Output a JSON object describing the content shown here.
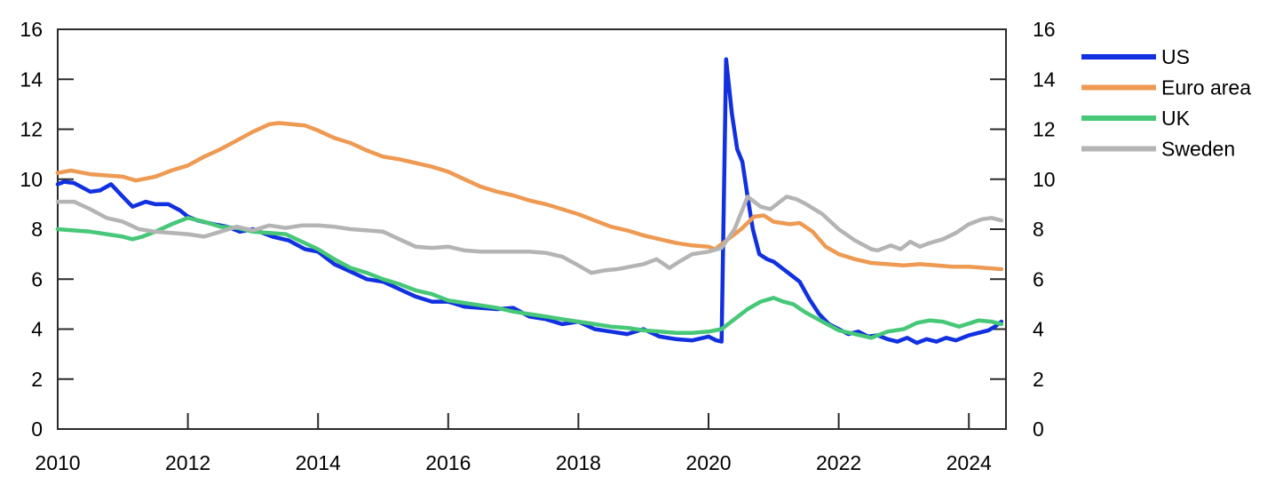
{
  "chart_data": {
    "type": "line",
    "title": "",
    "xlabel": "",
    "ylabel": "",
    "grid": false,
    "x_axis": {
      "min": 2010,
      "max": 2024.57,
      "ticks": [
        2010,
        2012,
        2014,
        2016,
        2018,
        2020,
        2022,
        2024
      ],
      "tick_labels": [
        "2010",
        "2012",
        "2014",
        "2016",
        "2018",
        "2020",
        "2022",
        "2024"
      ]
    },
    "y_axis": {
      "min": 0,
      "max": 16,
      "ticks": [
        0,
        2,
        4,
        6,
        8,
        10,
        12,
        14,
        16
      ],
      "tick_labels": [
        "0",
        "2",
        "4",
        "6",
        "8",
        "10",
        "12",
        "14",
        "16"
      ],
      "sides": [
        "left",
        "right"
      ]
    },
    "legend": {
      "position": "top-right-outside",
      "entries": [
        "US",
        "Euro area",
        "UK",
        "Sweden"
      ]
    },
    "series": [
      {
        "name": "US",
        "color": "#1130e0",
        "points": [
          [
            2010.0,
            9.8
          ],
          [
            2010.1,
            9.9
          ],
          [
            2010.25,
            9.85
          ],
          [
            2010.5,
            9.5
          ],
          [
            2010.65,
            9.55
          ],
          [
            2010.82,
            9.8
          ],
          [
            2011.0,
            9.3
          ],
          [
            2011.15,
            8.9
          ],
          [
            2011.35,
            9.1
          ],
          [
            2011.5,
            9.0
          ],
          [
            2011.7,
            9.0
          ],
          [
            2011.88,
            8.75
          ],
          [
            2012.0,
            8.5
          ],
          [
            2012.15,
            8.35
          ],
          [
            2012.4,
            8.2
          ],
          [
            2012.6,
            8.1
          ],
          [
            2012.8,
            7.9
          ],
          [
            2013.0,
            8.0
          ],
          [
            2013.3,
            7.7
          ],
          [
            2013.55,
            7.55
          ],
          [
            2013.8,
            7.2
          ],
          [
            2014.0,
            7.1
          ],
          [
            2014.25,
            6.6
          ],
          [
            2014.5,
            6.3
          ],
          [
            2014.75,
            6.0
          ],
          [
            2015.0,
            5.9
          ],
          [
            2015.25,
            5.6
          ],
          [
            2015.5,
            5.3
          ],
          [
            2015.75,
            5.1
          ],
          [
            2016.0,
            5.1
          ],
          [
            2016.25,
            4.9
          ],
          [
            2016.5,
            4.85
          ],
          [
            2016.75,
            4.8
          ],
          [
            2017.0,
            4.85
          ],
          [
            2017.25,
            4.5
          ],
          [
            2017.5,
            4.4
          ],
          [
            2017.75,
            4.2
          ],
          [
            2018.0,
            4.3
          ],
          [
            2018.25,
            4.0
          ],
          [
            2018.5,
            3.9
          ],
          [
            2018.75,
            3.8
          ],
          [
            2019.0,
            4.0
          ],
          [
            2019.25,
            3.7
          ],
          [
            2019.5,
            3.6
          ],
          [
            2019.75,
            3.55
          ],
          [
            2020.0,
            3.7
          ],
          [
            2020.12,
            3.55
          ],
          [
            2020.2,
            3.5
          ],
          [
            2020.27,
            14.8
          ],
          [
            2020.36,
            12.6
          ],
          [
            2020.44,
            11.2
          ],
          [
            2020.52,
            10.7
          ],
          [
            2020.6,
            9.3
          ],
          [
            2020.68,
            8.0
          ],
          [
            2020.78,
            7.0
          ],
          [
            2020.9,
            6.8
          ],
          [
            2021.0,
            6.7
          ],
          [
            2021.15,
            6.4
          ],
          [
            2021.3,
            6.1
          ],
          [
            2021.4,
            5.9
          ],
          [
            2021.55,
            5.2
          ],
          [
            2021.7,
            4.6
          ],
          [
            2021.85,
            4.2
          ],
          [
            2022.0,
            4.0
          ],
          [
            2022.15,
            3.8
          ],
          [
            2022.3,
            3.9
          ],
          [
            2022.45,
            3.7
          ],
          [
            2022.6,
            3.75
          ],
          [
            2022.75,
            3.6
          ],
          [
            2022.9,
            3.5
          ],
          [
            2023.05,
            3.65
          ],
          [
            2023.2,
            3.45
          ],
          [
            2023.35,
            3.6
          ],
          [
            2023.5,
            3.5
          ],
          [
            2023.65,
            3.65
          ],
          [
            2023.8,
            3.55
          ],
          [
            2024.0,
            3.75
          ],
          [
            2024.15,
            3.85
          ],
          [
            2024.3,
            3.95
          ],
          [
            2024.4,
            4.1
          ],
          [
            2024.5,
            4.3
          ]
        ]
      },
      {
        "name": "Euro area",
        "color": "#ee9a52",
        "points": [
          [
            2010.0,
            10.25
          ],
          [
            2010.2,
            10.35
          ],
          [
            2010.5,
            10.2
          ],
          [
            2010.75,
            10.15
          ],
          [
            2011.0,
            10.1
          ],
          [
            2011.2,
            9.95
          ],
          [
            2011.5,
            10.1
          ],
          [
            2011.75,
            10.35
          ],
          [
            2012.0,
            10.55
          ],
          [
            2012.25,
            10.9
          ],
          [
            2012.5,
            11.2
          ],
          [
            2012.75,
            11.55
          ],
          [
            2013.0,
            11.9
          ],
          [
            2013.25,
            12.2
          ],
          [
            2013.4,
            12.25
          ],
          [
            2013.6,
            12.2
          ],
          [
            2013.8,
            12.15
          ],
          [
            2014.0,
            11.95
          ],
          [
            2014.25,
            11.65
          ],
          [
            2014.5,
            11.45
          ],
          [
            2014.75,
            11.15
          ],
          [
            2015.0,
            10.9
          ],
          [
            2015.25,
            10.8
          ],
          [
            2015.5,
            10.65
          ],
          [
            2015.75,
            10.5
          ],
          [
            2016.0,
            10.3
          ],
          [
            2016.25,
            10.0
          ],
          [
            2016.5,
            9.7
          ],
          [
            2016.75,
            9.5
          ],
          [
            2017.0,
            9.35
          ],
          [
            2017.25,
            9.15
          ],
          [
            2017.5,
            9.0
          ],
          [
            2017.75,
            8.8
          ],
          [
            2018.0,
            8.6
          ],
          [
            2018.25,
            8.35
          ],
          [
            2018.5,
            8.1
          ],
          [
            2018.75,
            7.95
          ],
          [
            2019.0,
            7.75
          ],
          [
            2019.25,
            7.6
          ],
          [
            2019.5,
            7.45
          ],
          [
            2019.75,
            7.35
          ],
          [
            2020.0,
            7.3
          ],
          [
            2020.1,
            7.2
          ],
          [
            2020.3,
            7.6
          ],
          [
            2020.5,
            8.0
          ],
          [
            2020.7,
            8.5
          ],
          [
            2020.85,
            8.55
          ],
          [
            2021.0,
            8.3
          ],
          [
            2021.25,
            8.2
          ],
          [
            2021.4,
            8.25
          ],
          [
            2021.6,
            7.9
          ],
          [
            2021.8,
            7.3
          ],
          [
            2022.0,
            7.0
          ],
          [
            2022.25,
            6.8
          ],
          [
            2022.5,
            6.65
          ],
          [
            2022.75,
            6.6
          ],
          [
            2023.0,
            6.55
          ],
          [
            2023.25,
            6.6
          ],
          [
            2023.5,
            6.55
          ],
          [
            2023.75,
            6.5
          ],
          [
            2024.0,
            6.5
          ],
          [
            2024.25,
            6.45
          ],
          [
            2024.5,
            6.4
          ]
        ]
      },
      {
        "name": "UK",
        "color": "#46c878",
        "points": [
          [
            2010.0,
            8.0
          ],
          [
            2010.25,
            7.95
          ],
          [
            2010.5,
            7.9
          ],
          [
            2010.75,
            7.8
          ],
          [
            2011.0,
            7.7
          ],
          [
            2011.15,
            7.6
          ],
          [
            2011.3,
            7.7
          ],
          [
            2011.5,
            7.9
          ],
          [
            2011.75,
            8.2
          ],
          [
            2012.0,
            8.45
          ],
          [
            2012.25,
            8.3
          ],
          [
            2012.5,
            8.1
          ],
          [
            2012.75,
            8.05
          ],
          [
            2013.0,
            7.9
          ],
          [
            2013.25,
            7.85
          ],
          [
            2013.5,
            7.8
          ],
          [
            2013.75,
            7.5
          ],
          [
            2014.0,
            7.2
          ],
          [
            2014.25,
            6.8
          ],
          [
            2014.5,
            6.45
          ],
          [
            2014.75,
            6.25
          ],
          [
            2015.0,
            6.0
          ],
          [
            2015.25,
            5.8
          ],
          [
            2015.5,
            5.55
          ],
          [
            2015.75,
            5.4
          ],
          [
            2016.0,
            5.15
          ],
          [
            2016.25,
            5.05
          ],
          [
            2016.5,
            4.95
          ],
          [
            2016.75,
            4.85
          ],
          [
            2017.0,
            4.7
          ],
          [
            2017.25,
            4.6
          ],
          [
            2017.5,
            4.5
          ],
          [
            2017.75,
            4.4
          ],
          [
            2018.0,
            4.3
          ],
          [
            2018.25,
            4.2
          ],
          [
            2018.5,
            4.1
          ],
          [
            2018.75,
            4.05
          ],
          [
            2019.0,
            3.95
          ],
          [
            2019.25,
            3.9
          ],
          [
            2019.5,
            3.85
          ],
          [
            2019.75,
            3.85
          ],
          [
            2020.0,
            3.9
          ],
          [
            2020.2,
            4.0
          ],
          [
            2020.4,
            4.4
          ],
          [
            2020.6,
            4.8
          ],
          [
            2020.8,
            5.1
          ],
          [
            2021.0,
            5.25
          ],
          [
            2021.15,
            5.1
          ],
          [
            2021.3,
            5.0
          ],
          [
            2021.5,
            4.65
          ],
          [
            2021.75,
            4.3
          ],
          [
            2022.0,
            3.95
          ],
          [
            2022.25,
            3.8
          ],
          [
            2022.5,
            3.65
          ],
          [
            2022.75,
            3.9
          ],
          [
            2023.0,
            4.0
          ],
          [
            2023.2,
            4.25
          ],
          [
            2023.4,
            4.35
          ],
          [
            2023.6,
            4.3
          ],
          [
            2023.85,
            4.1
          ],
          [
            2024.15,
            4.35
          ],
          [
            2024.35,
            4.3
          ],
          [
            2024.5,
            4.2
          ]
        ]
      },
      {
        "name": "Sweden",
        "color": "#b4b4b4",
        "points": [
          [
            2010.0,
            9.1
          ],
          [
            2010.25,
            9.1
          ],
          [
            2010.5,
            8.8
          ],
          [
            2010.75,
            8.45
          ],
          [
            2011.0,
            8.3
          ],
          [
            2011.25,
            8.0
          ],
          [
            2011.5,
            7.9
          ],
          [
            2011.75,
            7.85
          ],
          [
            2012.0,
            7.8
          ],
          [
            2012.25,
            7.7
          ],
          [
            2012.5,
            7.9
          ],
          [
            2012.75,
            8.1
          ],
          [
            2013.0,
            7.95
          ],
          [
            2013.25,
            8.15
          ],
          [
            2013.5,
            8.05
          ],
          [
            2013.75,
            8.15
          ],
          [
            2014.0,
            8.15
          ],
          [
            2014.25,
            8.1
          ],
          [
            2014.5,
            8.0
          ],
          [
            2014.75,
            7.95
          ],
          [
            2015.0,
            7.9
          ],
          [
            2015.25,
            7.6
          ],
          [
            2015.5,
            7.3
          ],
          [
            2015.75,
            7.25
          ],
          [
            2016.0,
            7.3
          ],
          [
            2016.25,
            7.15
          ],
          [
            2016.5,
            7.1
          ],
          [
            2016.75,
            7.1
          ],
          [
            2017.0,
            7.1
          ],
          [
            2017.25,
            7.1
          ],
          [
            2017.5,
            7.05
          ],
          [
            2017.75,
            6.9
          ],
          [
            2018.0,
            6.55
          ],
          [
            2018.2,
            6.25
          ],
          [
            2018.4,
            6.35
          ],
          [
            2018.6,
            6.4
          ],
          [
            2018.8,
            6.5
          ],
          [
            2019.0,
            6.6
          ],
          [
            2019.2,
            6.8
          ],
          [
            2019.4,
            6.45
          ],
          [
            2019.55,
            6.7
          ],
          [
            2019.75,
            7.0
          ],
          [
            2020.0,
            7.1
          ],
          [
            2020.2,
            7.25
          ],
          [
            2020.4,
            8.0
          ],
          [
            2020.6,
            9.3
          ],
          [
            2020.8,
            8.9
          ],
          [
            2020.95,
            8.8
          ],
          [
            2021.2,
            9.3
          ],
          [
            2021.35,
            9.2
          ],
          [
            2021.5,
            9.0
          ],
          [
            2021.75,
            8.6
          ],
          [
            2022.0,
            8.0
          ],
          [
            2022.25,
            7.55
          ],
          [
            2022.5,
            7.2
          ],
          [
            2022.6,
            7.15
          ],
          [
            2022.8,
            7.35
          ],
          [
            2022.95,
            7.2
          ],
          [
            2023.1,
            7.5
          ],
          [
            2023.25,
            7.3
          ],
          [
            2023.4,
            7.45
          ],
          [
            2023.6,
            7.6
          ],
          [
            2023.8,
            7.85
          ],
          [
            2024.0,
            8.2
          ],
          [
            2024.2,
            8.4
          ],
          [
            2024.35,
            8.45
          ],
          [
            2024.5,
            8.35
          ]
        ]
      }
    ],
    "style": {
      "frame_color": "#2b2b2b",
      "text_color": "#000000",
      "line_width": 4.5,
      "tick_font_size": 23,
      "legend_font_size": 23
    }
  }
}
